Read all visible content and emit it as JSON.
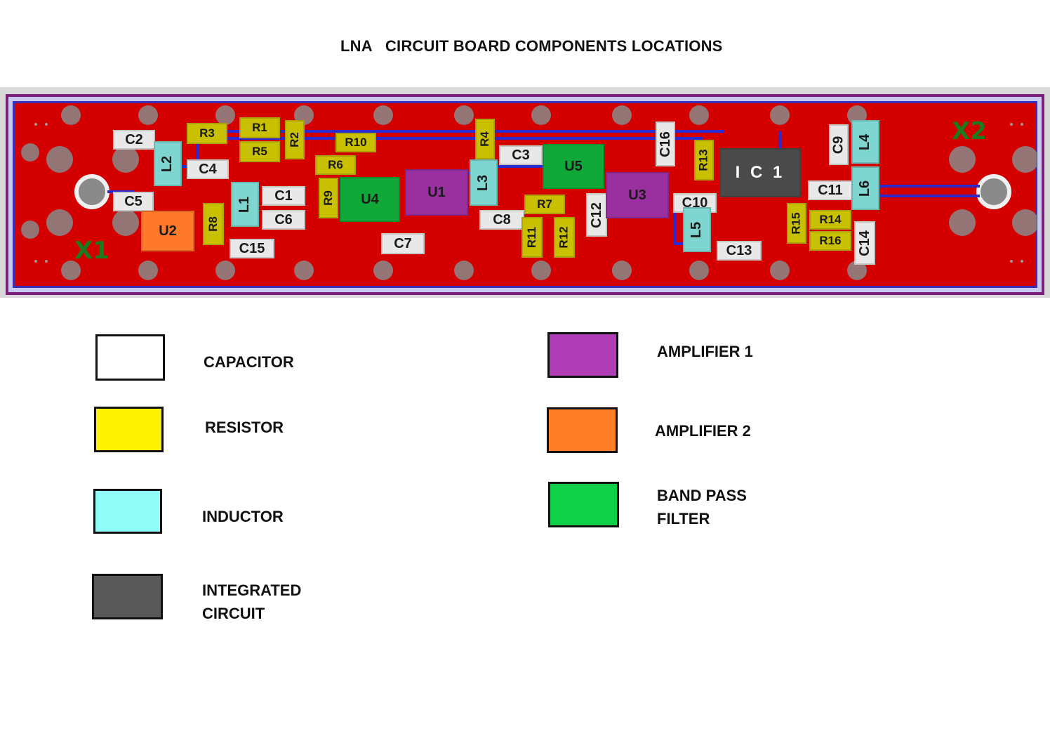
{
  "title": "LNA   CIRCUIT BOARD COMPONENTS LOCATIONS",
  "colors": {
    "capacitor": "#ffffff",
    "resistor": "#fff200",
    "inductor": "#8ffcf8",
    "integrated_circuit": "#595959",
    "amplifier_1": "#b03cb8",
    "amplifier_2": "#ff7f27",
    "band_pass_filter": "#10d04a",
    "board": "#d40000"
  },
  "board": {
    "connectors": {
      "left": "X1",
      "right": "X2"
    },
    "components": {
      "C2": "C2",
      "R3": "R3",
      "R1": "R1",
      "R5": "R5",
      "R2": "R2",
      "L2": "L2",
      "C4": "C4",
      "R10": "R10",
      "R6": "R6",
      "C5": "C5",
      "C1": "C1",
      "C6": "C6",
      "L1": "L1",
      "R9": "R9",
      "U4": "U4",
      "U1": "U1",
      "U2": "U2",
      "R8": "R8",
      "C15": "C15",
      "C7": "C7",
      "R4": "R4",
      "C3": "C3",
      "U5": "U5",
      "L3": "L3",
      "C8": "C8",
      "R7": "R7",
      "R11": "R11",
      "R12": "R12",
      "C12": "C12",
      "U3": "U3",
      "C16": "C16",
      "C10": "C10",
      "R13": "R13",
      "L5": "L5",
      "C13": "C13",
      "IC1": "I C 1",
      "R15": "R15",
      "R14": "R14",
      "R16": "R16",
      "C9": "C9",
      "C11": "C11",
      "L4": "L4",
      "L6": "L6",
      "C14": "C14"
    }
  },
  "legend": {
    "capacitor": "CAPACITOR",
    "resistor": "RESISTOR",
    "inductor": "INDUCTOR",
    "integrated_circuit_1": "INTEGRATED",
    "integrated_circuit_2": "CIRCUIT",
    "amplifier_1": "AMPLIFIER 1",
    "amplifier_2": "AMPLIFIER 2",
    "band_pass_filter_1": "BAND PASS",
    "band_pass_filter_2": "FILTER"
  }
}
